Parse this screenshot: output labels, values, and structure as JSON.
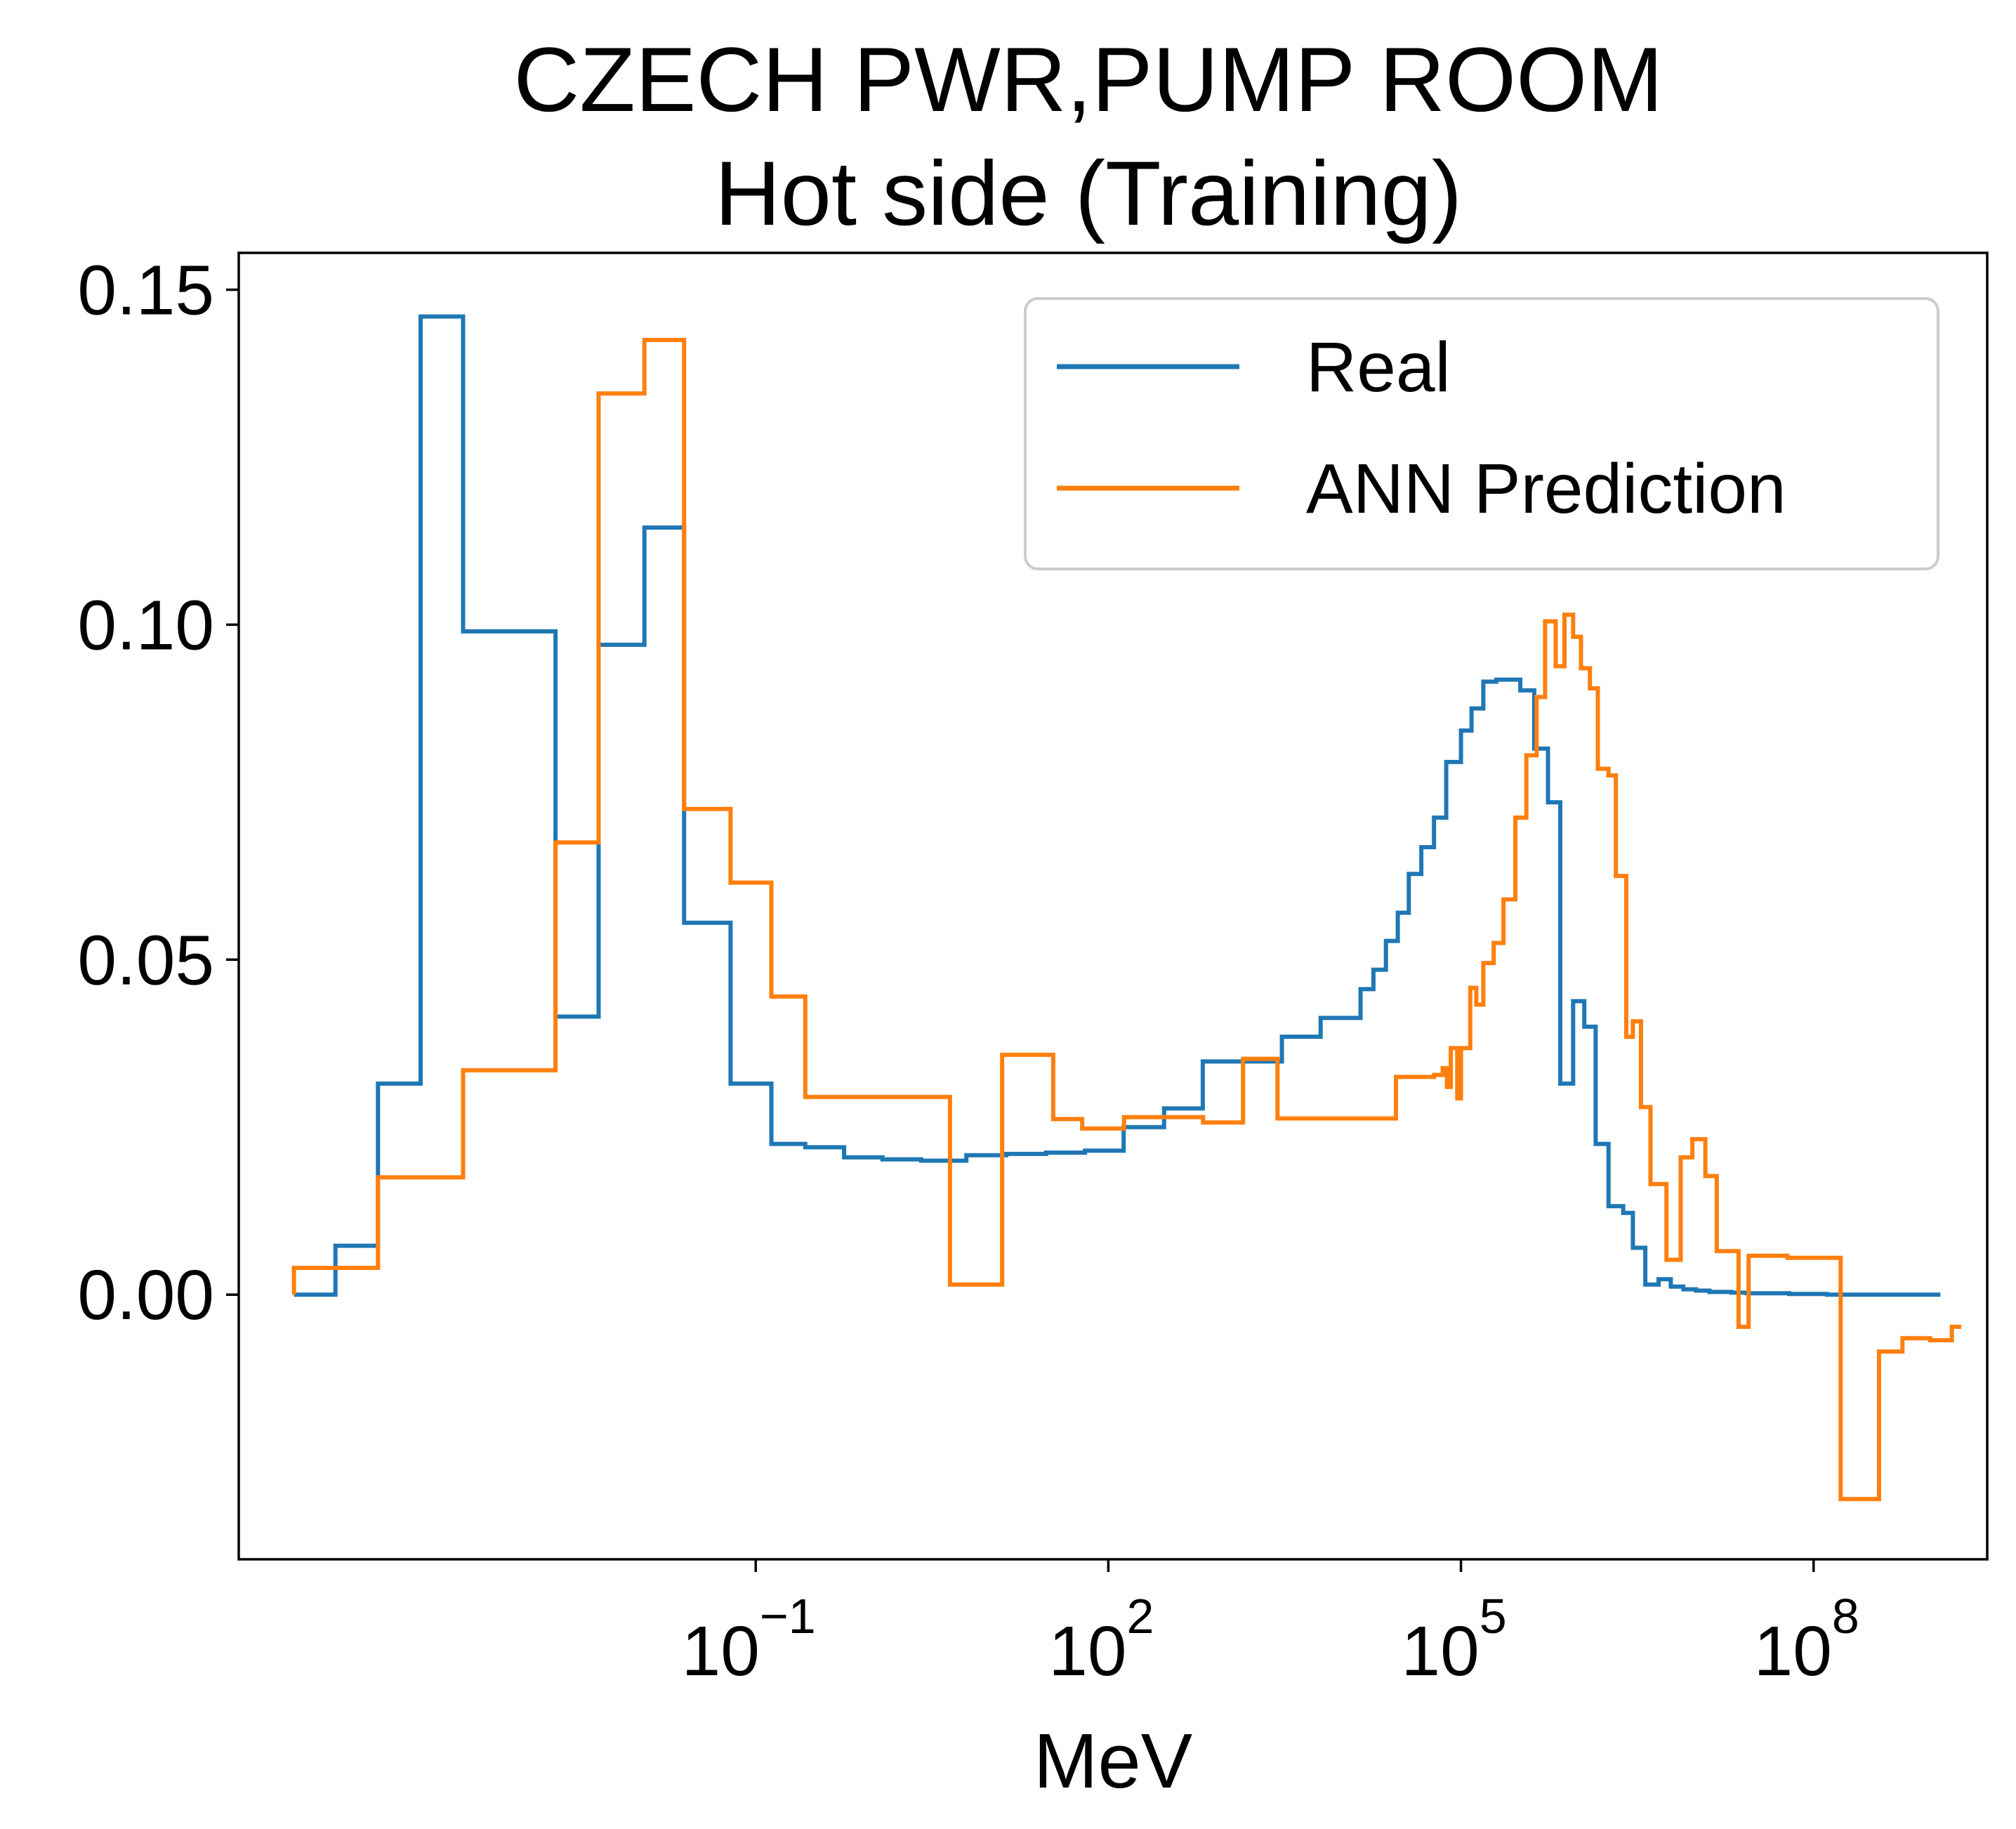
{
  "chart_data": {
    "type": "line",
    "step": "post",
    "title_line1": "CZECH PWR,PUMP ROOM",
    "title_line2": "Hot side (Training)",
    "xlabel": "MeV",
    "ylabel": "",
    "xscale": "log",
    "xlim": [
      4e-06,
      3000000000
    ],
    "ylim": [
      -0.0395,
      0.1555
    ],
    "grid": false,
    "legend_position": "top-right",
    "yticks": [
      {
        "value": 0.0,
        "label": "0.00"
      },
      {
        "value": 0.05,
        "label": "0.05"
      },
      {
        "value": 0.1,
        "label": "0.10"
      },
      {
        "value": 0.15,
        "label": "0.15"
      }
    ],
    "xticks": [
      {
        "value": 0.1,
        "base": "10",
        "exp": "−1"
      },
      {
        "value": 100,
        "base": "10",
        "exp": "2"
      },
      {
        "value": 100000,
        "base": "10",
        "exp": "5"
      },
      {
        "value": 100000000,
        "base": "10",
        "exp": "8"
      }
    ],
    "bin_edges": [
      1.18e-05,
      2.66e-05,
      6.12e-05,
      0.000141,
      0.000324,
      0.00198,
      0.00461,
      0.0113,
      0.0246,
      0.0611,
      0.136,
      0.264,
      0.565,
      1.198,
      2.56,
      6.2,
      13.5,
      29.6,
      63.3,
      135,
      298,
      636,
      1400,
      3000,
      6400,
      14000,
      18000,
      23000,
      29000,
      36000,
      46000,
      59000,
      75000,
      100000,
      123000,
      155000,
      200000,
      250000,
      320000,
      420000,
      550000,
      700000,
      900000,
      1120000,
      1400000,
      1800000,
      2400000,
      2900000,
      3700000,
      4800000,
      6100000,
      7800000,
      10000000,
      13000000,
      20000000,
      27000000,
      62000000,
      130000000,
      270000000,
      570000000,
      1200000000
    ],
    "series": [
      {
        "name": "Real",
        "color": "#1f77b4",
        "values": [
          0.0,
          0.0073,
          0.0315,
          0.146,
          0.099,
          0.0415,
          0.097,
          0.1145,
          0.0555,
          0.0315,
          0.0225,
          0.022,
          0.0205,
          0.0202,
          0.02,
          0.0208,
          0.021,
          0.0212,
          0.0215,
          0.025,
          0.0278,
          0.0348,
          0.0348,
          0.0385,
          0.0413,
          0.0456,
          0.0485,
          0.0528,
          0.057,
          0.0628,
          0.0668,
          0.0712,
          0.0795,
          0.0842,
          0.0875,
          0.0915,
          0.0918,
          0.0918,
          0.0902,
          0.0815,
          0.0735,
          0.0315,
          0.0438,
          0.04,
          0.0225,
          0.0132,
          0.0122,
          0.007,
          0.0015,
          0.0023,
          0.0012,
          0.0008,
          0.0006,
          0.0004,
          0.0003,
          0.0002,
          0.0001,
          0.0,
          0.0,
          0.0
        ]
      },
      {
        "name": "ANN Prediction",
        "color": "#ff7f0e",
        "values": [
          0.004,
          0.0175,
          0.0335,
          0.0675,
          0.1345,
          0.1425,
          0.0725,
          0.0615,
          0.0445,
          0.0295,
          0.0295,
          0.0015,
          0.0358,
          0.0262,
          0.0248,
          0.0265,
          0.0257,
          0.0352,
          0.0263,
          0.0263,
          0.0263,
          0.0325,
          0.0325,
          0.0328,
          0.0338,
          0.031,
          0.0368,
          0.0293,
          0.0368,
          0.0458,
          0.0433,
          0.0495,
          0.0525,
          0.059,
          0.0712,
          0.0805,
          0.0892,
          0.1005,
          0.0938,
          0.1015,
          0.0982,
          0.0935,
          0.0905,
          0.0785,
          0.0775,
          0.0625,
          0.0385,
          0.0408,
          0.028,
          0.0165,
          0.0052,
          0.0205,
          0.0232,
          0.0177,
          0.0065,
          -0.0048,
          0.0058,
          0.0055,
          -0.0305,
          -0.0085,
          -0.0065,
          -0.0068,
          -0.0048
        ],
        "edges_override": [
          1.18e-05,
          6.12e-05,
          0.000324,
          0.00198,
          0.00461,
          0.0113,
          0.0246,
          0.0611,
          0.136,
          0.264,
          0.565,
          4.5,
          12.5,
          34,
          60,
          136,
          640,
          1400,
          2750,
          7800,
          14000,
          28000,
          43000,
          59000,
          70000,
          76000,
          82000,
          93000,
          100000,
          120000,
          135000,
          155000,
          190000,
          230000,
          290000,
          360000,
          440000,
          520000,
          640000,
          760000,
          900000,
          1050000,
          1250000,
          1460000,
          1800000,
          2080000,
          2550000,
          2900000,
          3400000,
          4100000,
          5600000,
          7400000,
          9300000,
          12000000,
          15000000,
          23000000,
          28000000,
          60000000,
          170000000,
          360000000,
          570000000,
          980000000,
          1500000000,
          1800000000
        ]
      }
    ]
  }
}
